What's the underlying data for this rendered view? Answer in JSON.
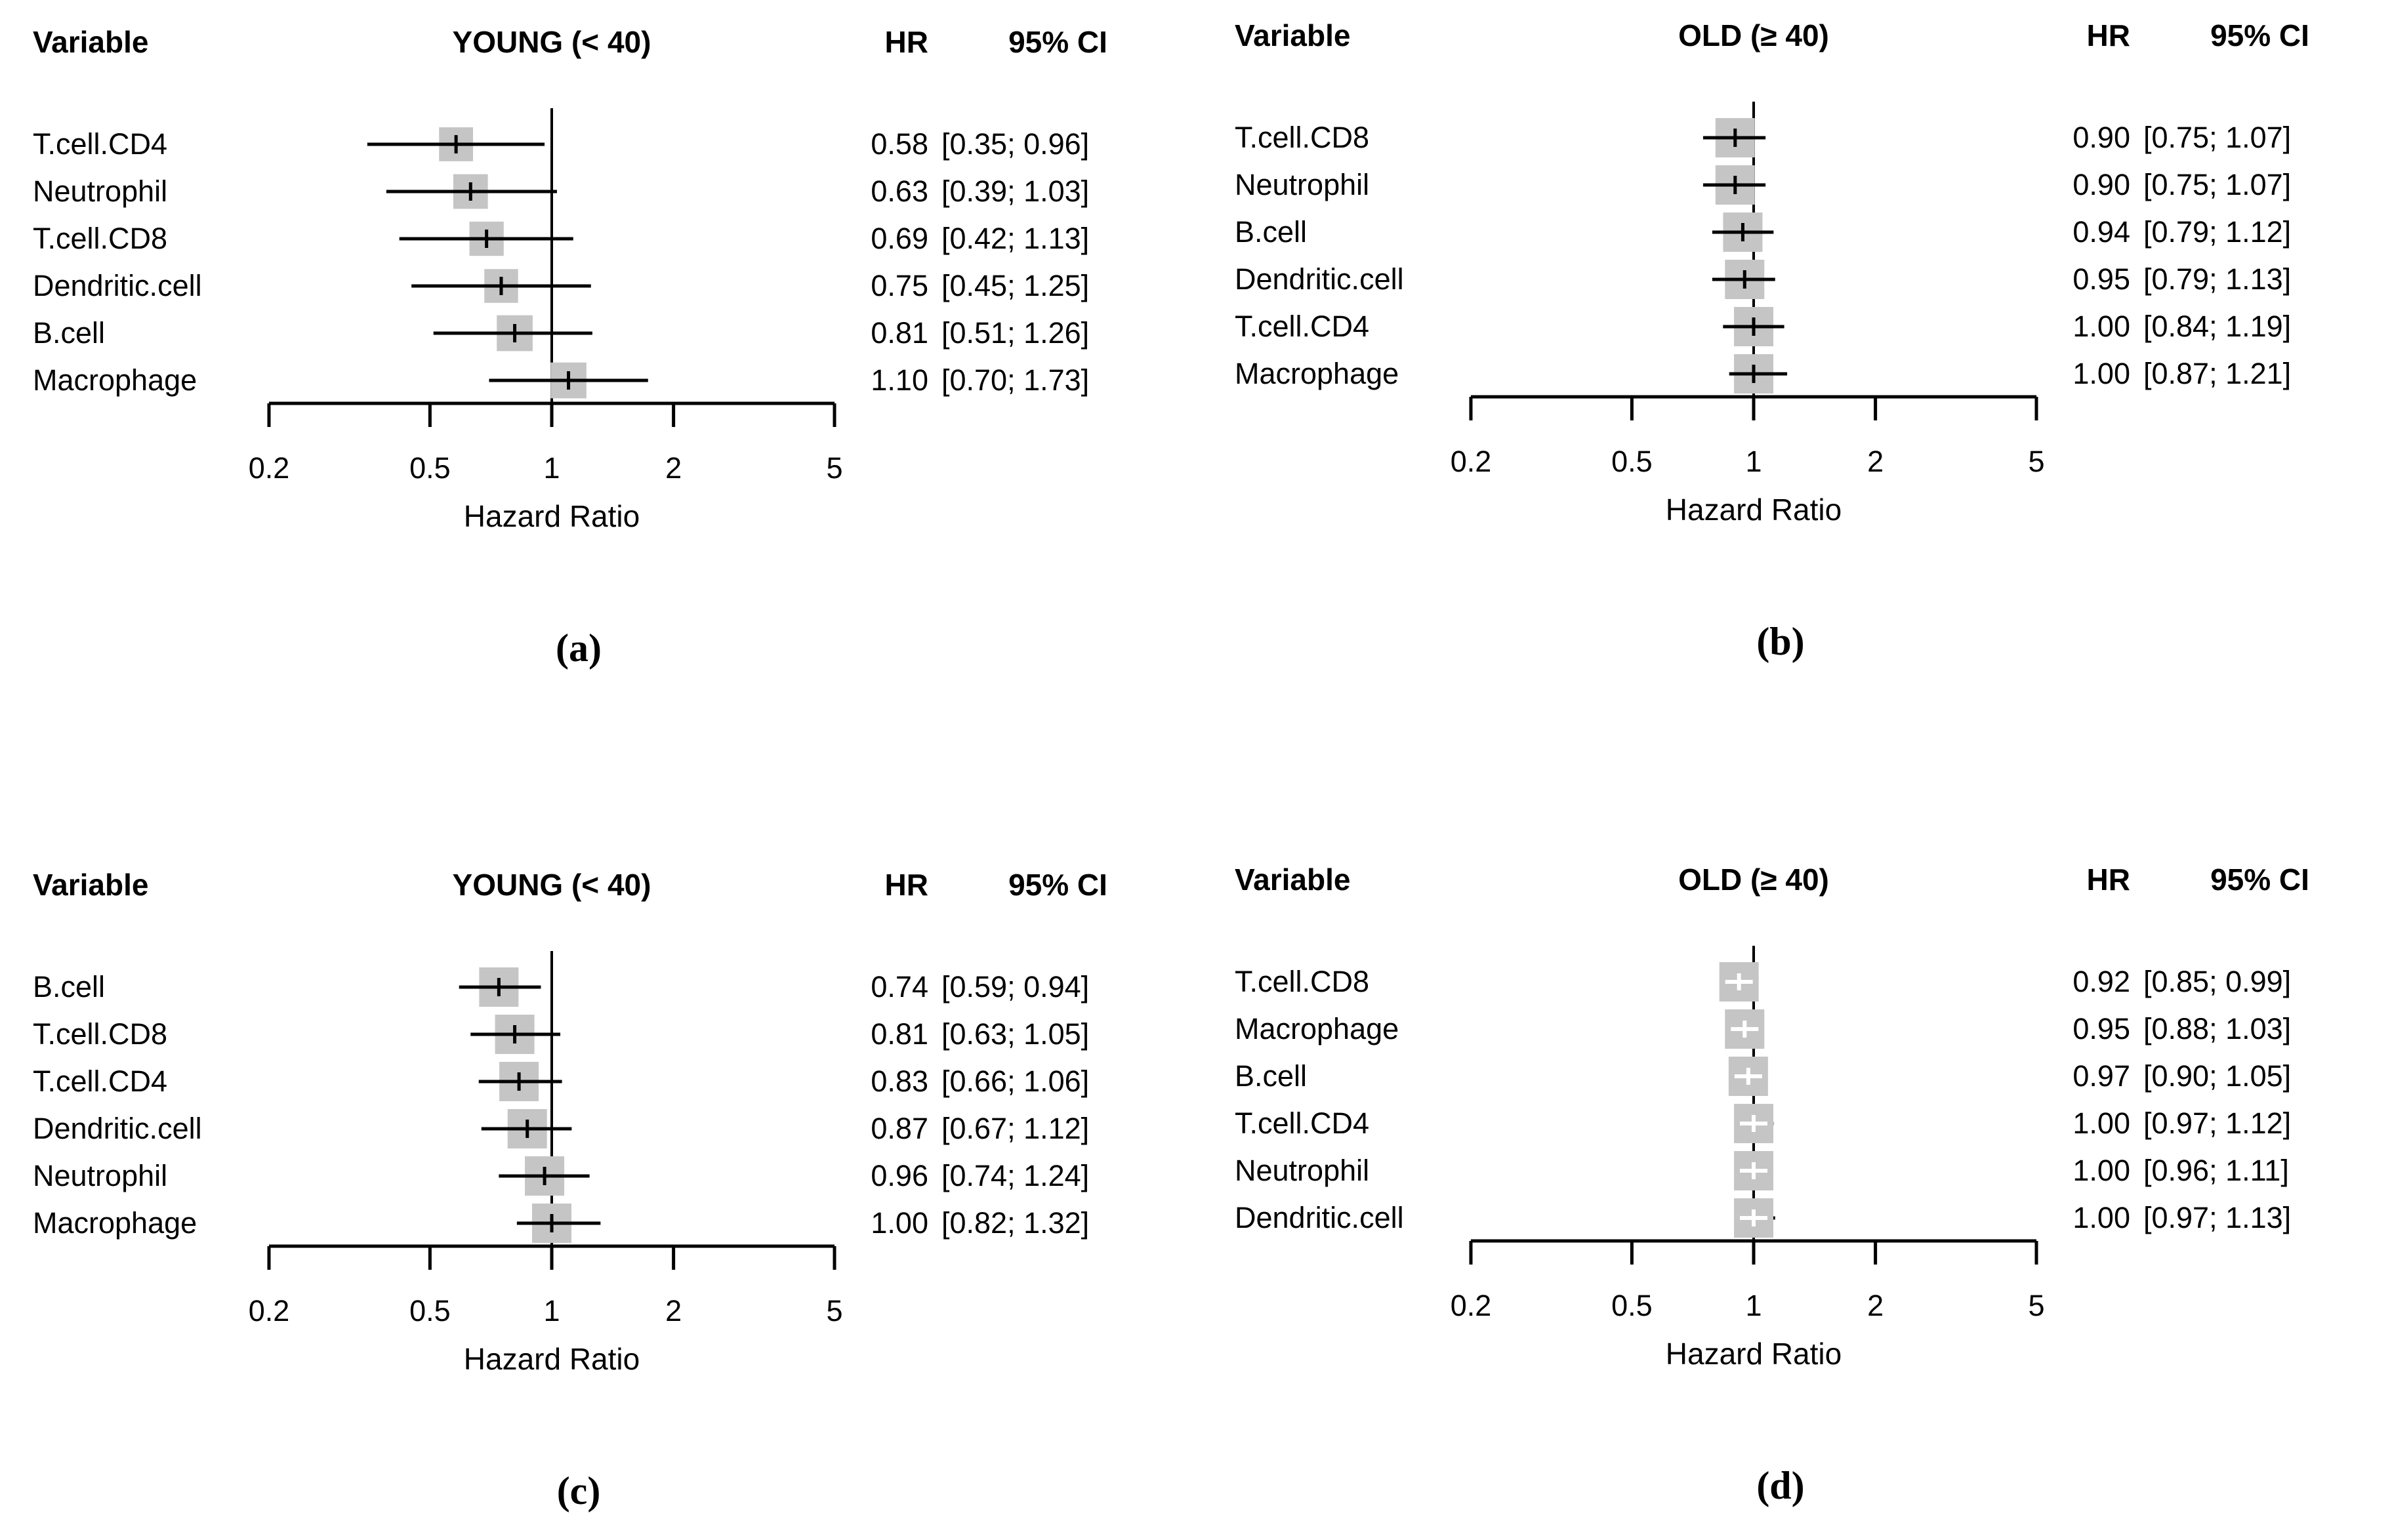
{
  "figure": {
    "columns": {
      "variable": "Variable",
      "hr": "HR",
      "ci": "95% CI"
    },
    "axis_label": "Hazard Ratio",
    "colors": {
      "background": "#ffffff",
      "text": "#000000",
      "line": "#000000",
      "box_fill": "#c5c5c5",
      "marker_black": "#000000",
      "marker_white": "#ffffff"
    }
  },
  "chart_data": [
    {
      "type": "scatter",
      "subtype": "forest-plot",
      "panel_label": "(a)",
      "group_title": "YOUNG (< 40)",
      "xlabel": "Hazard Ratio",
      "x_scale": "log",
      "x_range": [
        0.2,
        5
      ],
      "x_ticks": [
        "0.2",
        "0.5",
        "1",
        "2",
        "5"
      ],
      "x_tick_values": [
        0.2,
        0.5,
        1,
        2,
        5
      ],
      "reference_line": 1,
      "marker_style": "black-tick",
      "rows": [
        {
          "variable": "T.cell.CD4",
          "hr": 0.58,
          "ci_low": 0.35,
          "ci_high": 0.96,
          "hr_text": "0.58",
          "ci_text": "[0.35; 0.96]"
        },
        {
          "variable": "Neutrophil",
          "hr": 0.63,
          "ci_low": 0.39,
          "ci_high": 1.03,
          "hr_text": "0.63",
          "ci_text": "[0.39; 1.03]"
        },
        {
          "variable": "T.cell.CD8",
          "hr": 0.69,
          "ci_low": 0.42,
          "ci_high": 1.13,
          "hr_text": "0.69",
          "ci_text": "[0.42; 1.13]"
        },
        {
          "variable": "Dendritic.cell",
          "hr": 0.75,
          "ci_low": 0.45,
          "ci_high": 1.25,
          "hr_text": "0.75",
          "ci_text": "[0.45; 1.25]"
        },
        {
          "variable": "B.cell",
          "hr": 0.81,
          "ci_low": 0.51,
          "ci_high": 1.26,
          "hr_text": "0.81",
          "ci_text": "[0.51; 1.26]"
        },
        {
          "variable": "Macrophage",
          "hr": 1.1,
          "ci_low": 0.7,
          "ci_high": 1.73,
          "hr_text": "1.10",
          "ci_text": "[0.70; 1.73]"
        }
      ]
    },
    {
      "type": "scatter",
      "subtype": "forest-plot",
      "panel_label": "(b)",
      "group_title": "OLD (≥ 40)",
      "xlabel": "Hazard Ratio",
      "x_scale": "log",
      "x_range": [
        0.2,
        5
      ],
      "x_ticks": [
        "0.2",
        "0.5",
        "1",
        "2",
        "5"
      ],
      "x_tick_values": [
        0.2,
        0.5,
        1,
        2,
        5
      ],
      "reference_line": 1,
      "marker_style": "black-tick",
      "rows": [
        {
          "variable": "T.cell.CD8",
          "hr": 0.9,
          "ci_low": 0.75,
          "ci_high": 1.07,
          "hr_text": "0.90",
          "ci_text": "[0.75; 1.07]"
        },
        {
          "variable": "Neutrophil",
          "hr": 0.9,
          "ci_low": 0.75,
          "ci_high": 1.07,
          "hr_text": "0.90",
          "ci_text": "[0.75; 1.07]"
        },
        {
          "variable": "B.cell",
          "hr": 0.94,
          "ci_low": 0.79,
          "ci_high": 1.12,
          "hr_text": "0.94",
          "ci_text": "[0.79; 1.12]"
        },
        {
          "variable": "Dendritic.cell",
          "hr": 0.95,
          "ci_low": 0.79,
          "ci_high": 1.13,
          "hr_text": "0.95",
          "ci_text": "[0.79; 1.13]"
        },
        {
          "variable": "T.cell.CD4",
          "hr": 1.0,
          "ci_low": 0.84,
          "ci_high": 1.19,
          "hr_text": "1.00",
          "ci_text": "[0.84; 1.19]"
        },
        {
          "variable": "Macrophage",
          "hr": 1.0,
          "ci_low": 0.87,
          "ci_high": 1.21,
          "hr_text": "1.00",
          "ci_text": "[0.87; 1.21]"
        }
      ]
    },
    {
      "type": "scatter",
      "subtype": "forest-plot",
      "panel_label": "(c)",
      "group_title": "YOUNG (< 40)",
      "xlabel": "Hazard Ratio",
      "x_scale": "log",
      "x_range": [
        0.2,
        5
      ],
      "x_ticks": [
        "0.2",
        "0.5",
        "1",
        "2",
        "5"
      ],
      "x_tick_values": [
        0.2,
        0.5,
        1,
        2,
        5
      ],
      "reference_line": 1,
      "marker_style": "black-tick",
      "rows": [
        {
          "variable": "B.cell",
          "hr": 0.74,
          "ci_low": 0.59,
          "ci_high": 0.94,
          "hr_text": "0.74",
          "ci_text": "[0.59; 0.94]"
        },
        {
          "variable": "T.cell.CD8",
          "hr": 0.81,
          "ci_low": 0.63,
          "ci_high": 1.05,
          "hr_text": "0.81",
          "ci_text": "[0.63; 1.05]"
        },
        {
          "variable": "T.cell.CD4",
          "hr": 0.83,
          "ci_low": 0.66,
          "ci_high": 1.06,
          "hr_text": "0.83",
          "ci_text": "[0.66; 1.06]"
        },
        {
          "variable": "Dendritic.cell",
          "hr": 0.87,
          "ci_low": 0.67,
          "ci_high": 1.12,
          "hr_text": "0.87",
          "ci_text": "[0.67; 1.12]"
        },
        {
          "variable": "Neutrophil",
          "hr": 0.96,
          "ci_low": 0.74,
          "ci_high": 1.24,
          "hr_text": "0.96",
          "ci_text": "[0.74; 1.24]"
        },
        {
          "variable": "Macrophage",
          "hr": 1.0,
          "ci_low": 0.82,
          "ci_high": 1.32,
          "hr_text": "1.00",
          "ci_text": "[0.82; 1.32]"
        }
      ]
    },
    {
      "type": "scatter",
      "subtype": "forest-plot",
      "panel_label": "(d)",
      "group_title": "OLD (≥ 40)",
      "xlabel": "Hazard Ratio",
      "x_scale": "log",
      "x_range": [
        0.2,
        5
      ],
      "x_ticks": [
        "0.2",
        "0.5",
        "1",
        "2",
        "5"
      ],
      "x_tick_values": [
        0.2,
        0.5,
        1,
        2,
        5
      ],
      "reference_line": 1,
      "marker_style": "white-plus",
      "rows": [
        {
          "variable": "T.cell.CD8",
          "hr": 0.92,
          "ci_low": 0.85,
          "ci_high": 0.99,
          "hr_text": "0.92",
          "ci_text": "[0.85; 0.99]"
        },
        {
          "variable": "Macrophage",
          "hr": 0.95,
          "ci_low": 0.88,
          "ci_high": 1.03,
          "hr_text": "0.95",
          "ci_text": "[0.88; 1.03]"
        },
        {
          "variable": "B.cell",
          "hr": 0.97,
          "ci_low": 0.9,
          "ci_high": 1.05,
          "hr_text": "0.97",
          "ci_text": "[0.90; 1.05]"
        },
        {
          "variable": "T.cell.CD4",
          "hr": 1.0,
          "ci_low": 0.97,
          "ci_high": 1.12,
          "hr_text": "1.00",
          "ci_text": "[0.97; 1.12]"
        },
        {
          "variable": "Neutrophil",
          "hr": 1.0,
          "ci_low": 0.96,
          "ci_high": 1.11,
          "hr_text": "1.00",
          "ci_text": "[0.96; 1.11]"
        },
        {
          "variable": "Dendritic.cell",
          "hr": 1.0,
          "ci_low": 0.97,
          "ci_high": 1.13,
          "hr_text": "1.00",
          "ci_text": "[0.97; 1.13]"
        }
      ]
    }
  ]
}
